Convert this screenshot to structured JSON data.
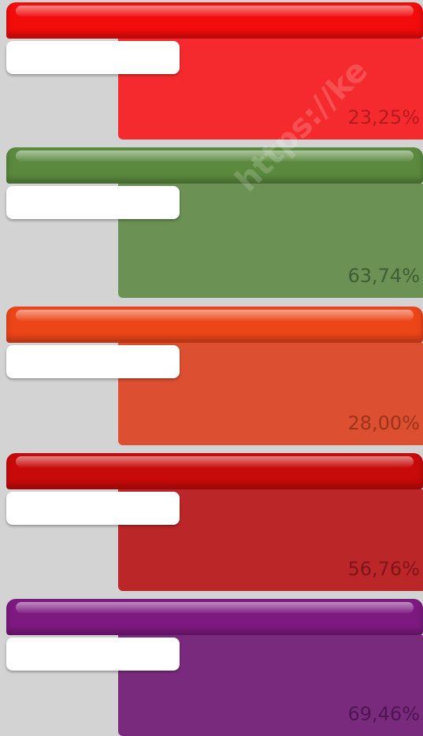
{
  "watermark": "https://ke",
  "cards": [
    {
      "label": "23,25%",
      "header_color": "#f20c0c",
      "body_color": "#f52a2e",
      "text_color": "#b51a1f"
    },
    {
      "label": "63,74%",
      "header_color": "#5b8a3e",
      "body_color": "#6b9155",
      "text_color": "#3f5e33"
    },
    {
      "label": "28,00%",
      "header_color": "#ec4518",
      "body_color": "#dc4f30",
      "text_color": "#9c331c"
    },
    {
      "label": "56,76%",
      "header_color": "#c80a0a",
      "body_color": "#bb2628",
      "text_color": "#7e1619"
    },
    {
      "label": "69,46%",
      "header_color": "#7d1a80",
      "body_color": "#7a2a7c",
      "text_color": "#4e1650"
    }
  ]
}
